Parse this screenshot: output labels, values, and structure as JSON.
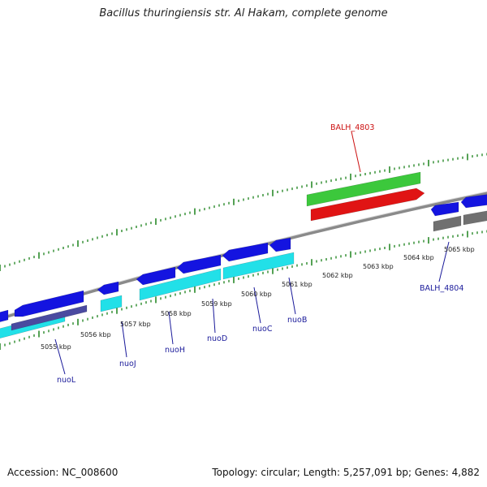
{
  "title": "Bacillus thuringiensis str. Al Hakam, complete genome",
  "footer": {
    "accession": "Accession: NC_008600",
    "summary": "Topology: circular; Length: 5,257,091 bp; Genes: 4,882"
  },
  "colors": {
    "backbone": "#8a8a8a",
    "tick": "#2a8a2a",
    "forward_cds": "#1414e0",
    "reverse_cds": "#22e0e8",
    "dark_feature": "#4a4aa0",
    "grey_feature": "#707070",
    "rna": "#e01414",
    "green_gene": "#3cc83c",
    "label_default": "#1a1a9a",
    "label_highlight": "#cc1111"
  },
  "scale": {
    "unit": "kbp",
    "labels": [
      "5055 kbp",
      "5056 kbp",
      "5057 kbp",
      "5058 kbp",
      "5059 kbp",
      "5060 kbp",
      "5061 kbp",
      "5062 kbp",
      "5063 kbp",
      "5064 kbp",
      "5065 kbp"
    ]
  },
  "gene_labels": [
    {
      "text": "nuoL",
      "color": "#1a1a9a"
    },
    {
      "text": "nuoJ",
      "color": "#1a1a9a"
    },
    {
      "text": "nuoH",
      "color": "#1a1a9a"
    },
    {
      "text": "nuoD",
      "color": "#1a1a9a"
    },
    {
      "text": "nuoC",
      "color": "#1a1a9a"
    },
    {
      "text": "nuoB",
      "color": "#1a1a9a"
    },
    {
      "text": "BALH_4804",
      "color": "#1a1a9a"
    },
    {
      "text": "BALH_4803",
      "color": "#cc1111"
    }
  ]
}
